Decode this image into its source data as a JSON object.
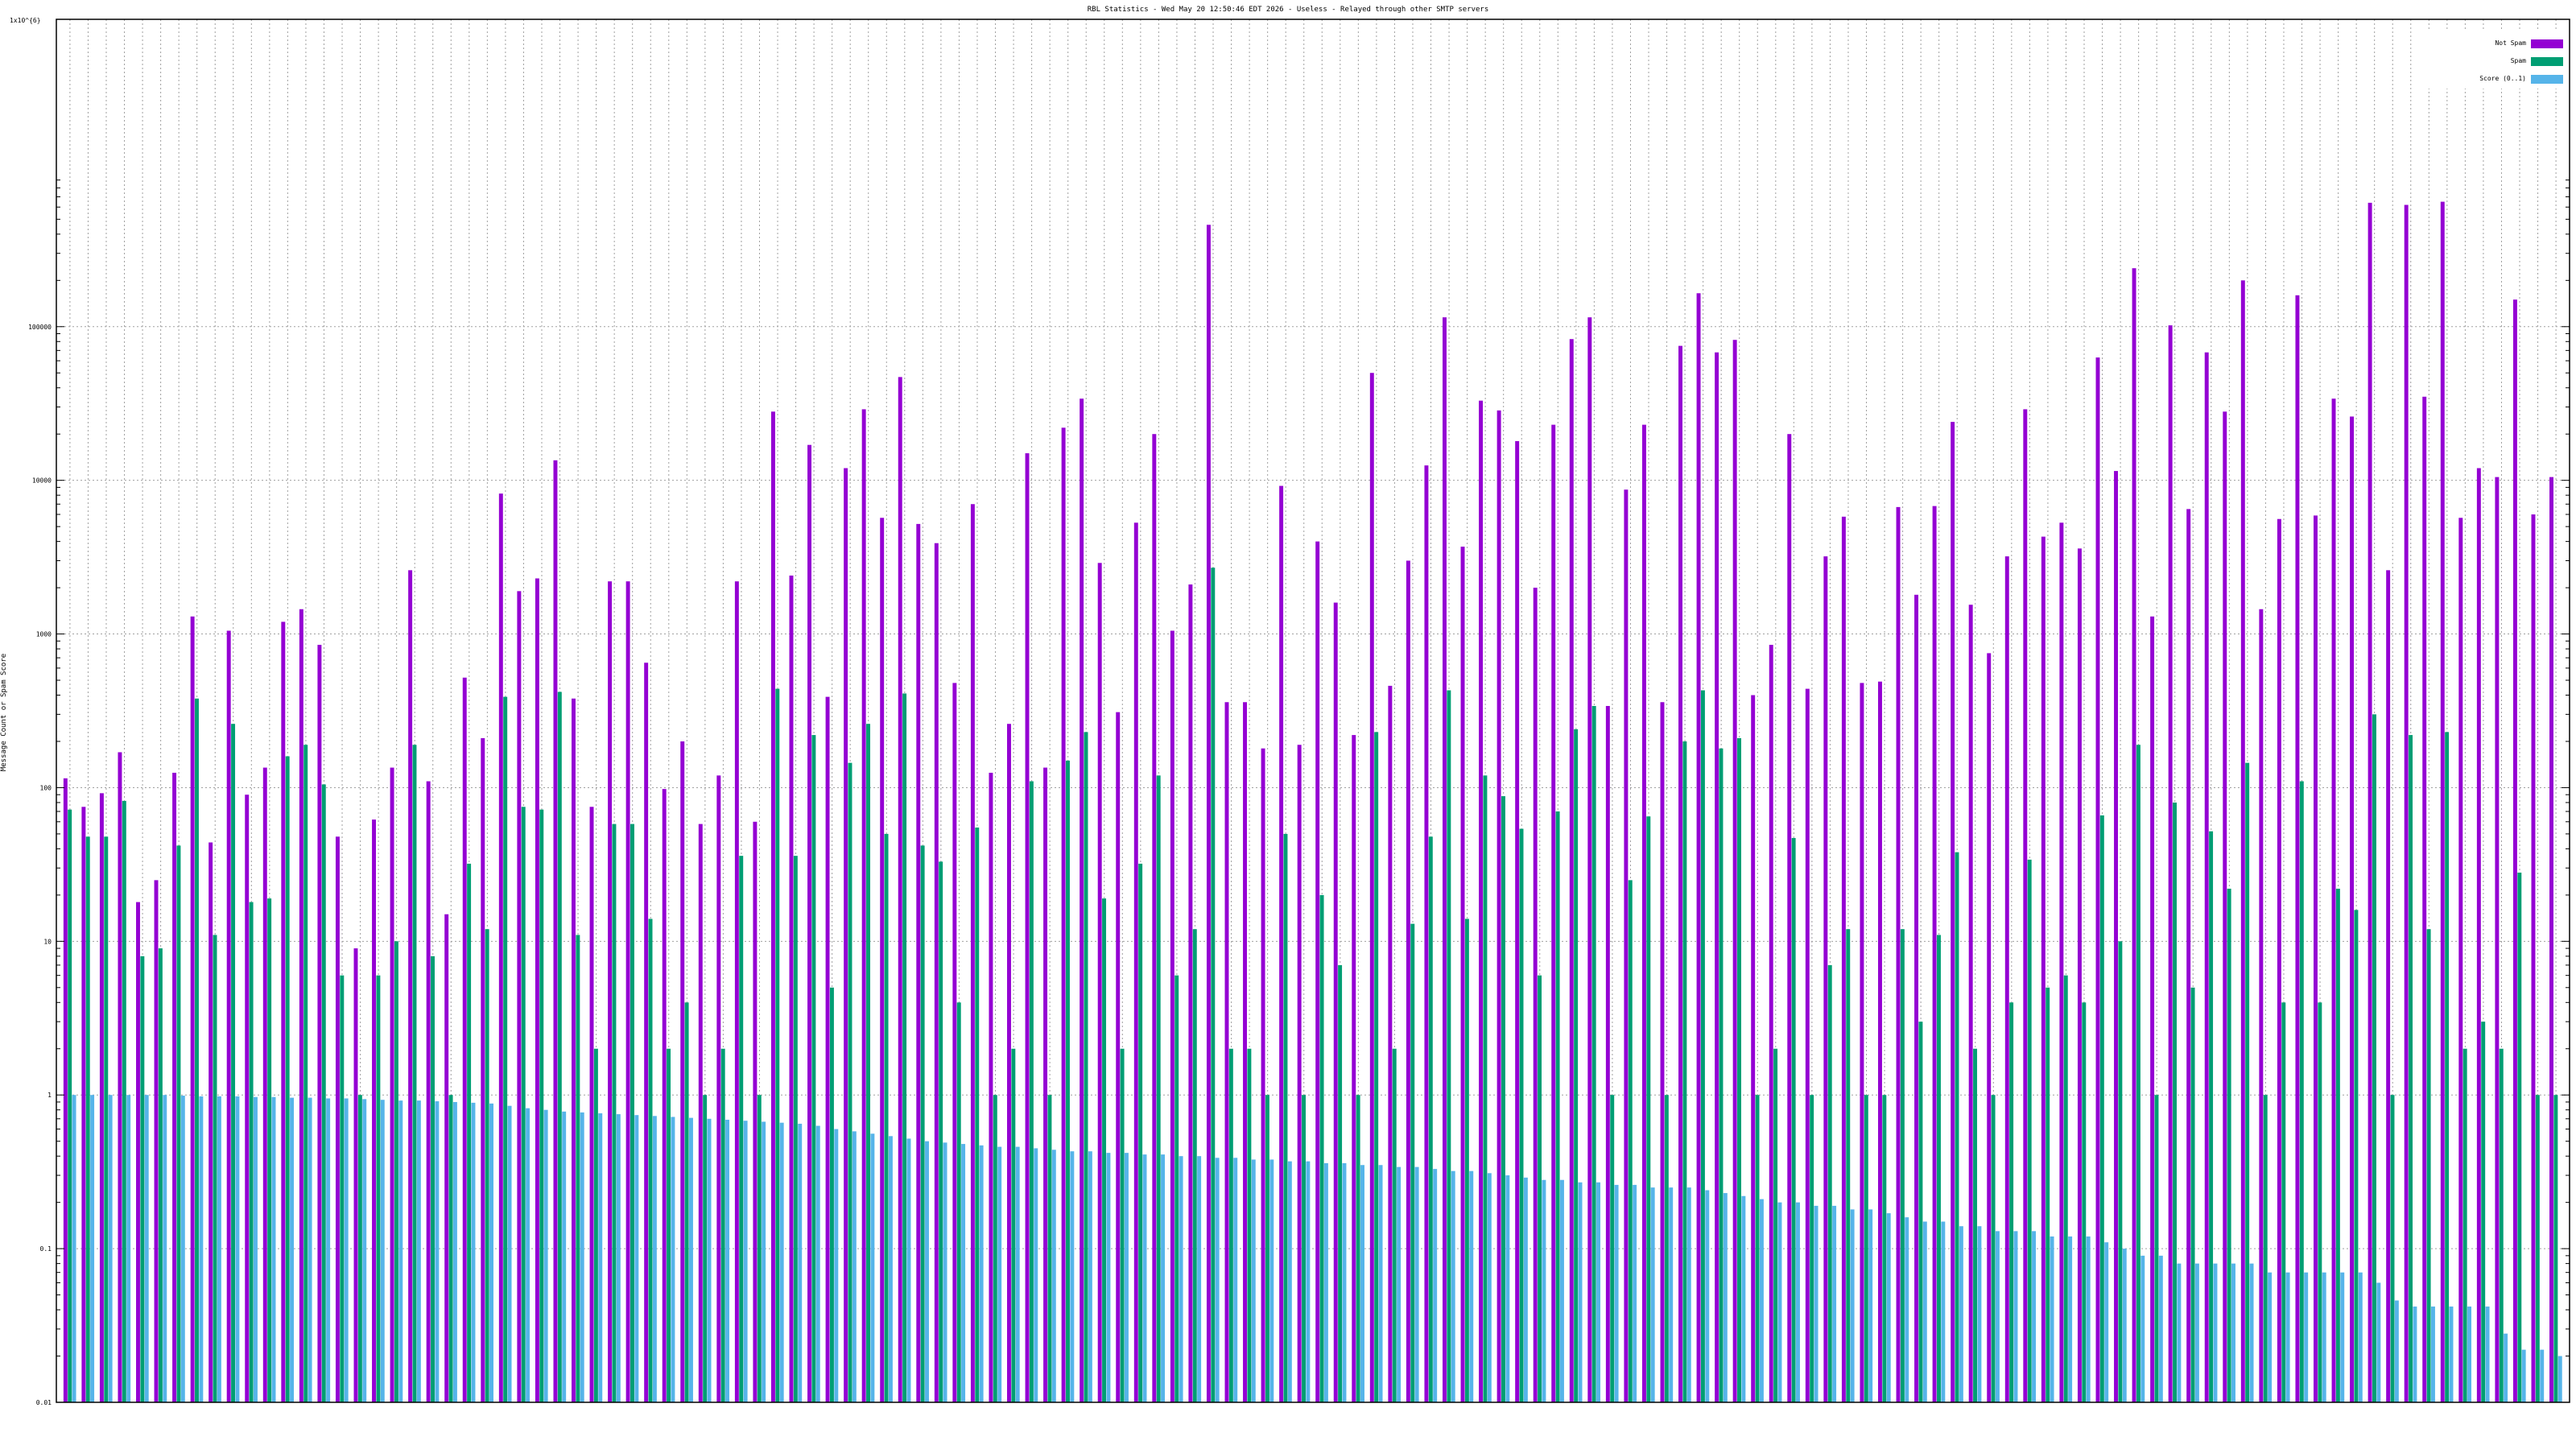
{
  "chart_data": {
    "type": "bar",
    "title": "RBL Statistics - Wed May 20 12:50:46 EDT 2026 - Useless - Relayed through other SMTP servers",
    "ylabel": "Message Count or Spam Score",
    "xlabel": "",
    "y_scale": "log",
    "ylim": [
      0.01,
      10000000
    ],
    "y_ticks": [
      "0.01",
      "0.1",
      "1",
      "10",
      "100",
      "1000",
      "10000",
      "100000"
    ],
    "y_top_label": "1x10^{6}",
    "grid": true,
    "legend_position": "top-right",
    "series": [
      {
        "name": "Not Spam",
        "color": "#9400d3",
        "values": [
          115,
          75,
          92,
          170,
          18,
          25,
          125,
          1300,
          44,
          1050,
          90,
          135,
          1200,
          1450,
          850,
          48,
          9,
          62,
          135,
          2600,
          110,
          15,
          520,
          210,
          8200,
          1900,
          2300,
          13500,
          380,
          75,
          2200,
          2200,
          650,
          98,
          200,
          58,
          120,
          2200,
          60,
          28000,
          2400,
          17000,
          390,
          12000,
          29000,
          5700,
          47000,
          5200,
          3900,
          480,
          7000,
          125,
          260,
          15000,
          135,
          22000,
          34000,
          2900,
          310,
          5300,
          20000,
          1050,
          2100,
          460000,
          360,
          360,
          180,
          9200,
          190,
          4000,
          1600,
          220,
          50000,
          460,
          3000,
          12500,
          115000,
          3700,
          33000,
          28500,
          18000,
          2000,
          23000,
          83000,
          115000,
          340,
          8700,
          23000,
          360,
          75000,
          165000,
          68000,
          82000,
          400,
          850,
          20000,
          440,
          3200,
          5800,
          480,
          490,
          6700,
          1800,
          6800,
          24000,
          1550,
          750,
          3200,
          29000,
          4300,
          5300,
          3600,
          63000,
          11500,
          240000,
          1300,
          102000,
          6500,
          68000,
          28000,
          200000,
          1450,
          5600,
          160000,
          5900,
          34000,
          26000,
          640000,
          2600,
          620000,
          35000,
          650000,
          5700,
          12000,
          10500,
          150000,
          6000,
          10500
        ]
      },
      {
        "name": "Spam",
        "color": "#009e73",
        "values": [
          72,
          48,
          48,
          82,
          8,
          9,
          42,
          380,
          11,
          260,
          18,
          19,
          160,
          190,
          105,
          6,
          1,
          6,
          10,
          190,
          8,
          1,
          32,
          12,
          390,
          75,
          72,
          420,
          11,
          2,
          58,
          58,
          14,
          2,
          4,
          1,
          2,
          36,
          1,
          440,
          36,
          220,
          5,
          145,
          260,
          50,
          410,
          42,
          33,
          4,
          55,
          1,
          2,
          110,
          1,
          150,
          230,
          19,
          2,
          32,
          120,
          6,
          12,
          2700,
          2,
          2,
          1,
          50,
          1,
          20,
          7,
          1,
          230,
          2,
          13,
          48,
          430,
          14,
          120,
          88,
          54,
          6,
          70,
          240,
          340,
          1,
          25,
          65,
          1,
          200,
          430,
          180,
          210,
          1,
          2,
          47,
          1,
          7,
          12,
          1,
          1,
          12,
          3,
          11,
          38,
          2,
          1,
          4,
          34,
          5,
          6,
          4,
          66,
          10,
          190,
          1,
          80,
          5,
          52,
          22,
          145,
          1,
          4,
          110,
          4,
          22,
          16,
          300,
          1,
          220,
          12,
          230,
          2,
          3,
          2,
          28,
          1,
          1
        ]
      },
      {
        "name": "Score (0..1)",
        "color": "#56b4e9",
        "values": [
          1.0,
          1.0,
          1.0,
          1.0,
          1.0,
          1.0,
          0.99,
          0.98,
          0.98,
          0.98,
          0.97,
          0.97,
          0.96,
          0.96,
          0.95,
          0.95,
          0.94,
          0.93,
          0.92,
          0.92,
          0.91,
          0.9,
          0.89,
          0.88,
          0.85,
          0.82,
          0.8,
          0.78,
          0.77,
          0.76,
          0.75,
          0.74,
          0.73,
          0.72,
          0.71,
          0.7,
          0.69,
          0.68,
          0.67,
          0.66,
          0.65,
          0.63,
          0.6,
          0.58,
          0.56,
          0.54,
          0.52,
          0.5,
          0.49,
          0.48,
          0.47,
          0.46,
          0.46,
          0.45,
          0.44,
          0.43,
          0.43,
          0.42,
          0.42,
          0.41,
          0.41,
          0.4,
          0.4,
          0.39,
          0.39,
          0.38,
          0.38,
          0.37,
          0.37,
          0.36,
          0.36,
          0.35,
          0.35,
          0.34,
          0.34,
          0.33,
          0.32,
          0.32,
          0.31,
          0.3,
          0.29,
          0.28,
          0.28,
          0.27,
          0.27,
          0.26,
          0.26,
          0.25,
          0.25,
          0.25,
          0.24,
          0.23,
          0.22,
          0.21,
          0.2,
          0.2,
          0.19,
          0.19,
          0.18,
          0.18,
          0.17,
          0.16,
          0.15,
          0.15,
          0.14,
          0.14,
          0.13,
          0.13,
          0.13,
          0.12,
          0.12,
          0.12,
          0.11,
          0.1,
          0.09,
          0.09,
          0.08,
          0.08,
          0.08,
          0.08,
          0.08,
          0.07,
          0.07,
          0.07,
          0.07,
          0.07,
          0.07,
          0.06,
          0.046,
          0.042,
          0.042,
          0.042,
          0.042,
          0.042,
          0.028,
          0.022,
          0.022,
          0.02
        ]
      }
    ]
  }
}
